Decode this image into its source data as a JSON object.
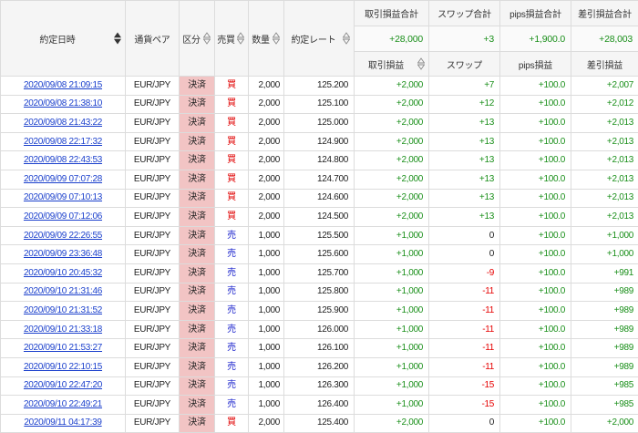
{
  "table": {
    "headers": {
      "date": "約定日時",
      "pair": "通貨ペア",
      "kubun": "区分",
      "side": "売買",
      "qty": "数量",
      "rate": "約定レート",
      "pl_total_label": "取引損益合計",
      "swap_total_label": "スワップ合計",
      "pips_total_label": "pips損益合計",
      "net_total_label": "差引損益合計",
      "pl": "取引損益",
      "swap": "スワップ",
      "pips": "pips損益",
      "net": "差引損益"
    },
    "sortable": {
      "date": "active",
      "kubun": "inactive",
      "side": "inactive",
      "qty": "inactive",
      "rate": "inactive",
      "pl": "inactive"
    },
    "totals": {
      "pl": "+28,000",
      "swap": "+3",
      "pips": "+1,900.0",
      "net": "+28,003"
    },
    "rows": [
      {
        "date": "2020/09/08 21:09:15",
        "pair": "EUR/JPY",
        "kubun": "決済",
        "side": "買",
        "qty": "2,000",
        "rate": "125.200",
        "pl": "+2,000",
        "swap": "+7",
        "pips": "+100.0",
        "net": "+2,007"
      },
      {
        "date": "2020/09/08 21:38:10",
        "pair": "EUR/JPY",
        "kubun": "決済",
        "side": "買",
        "qty": "2,000",
        "rate": "125.100",
        "pl": "+2,000",
        "swap": "+12",
        "pips": "+100.0",
        "net": "+2,012"
      },
      {
        "date": "2020/09/08 21:43:22",
        "pair": "EUR/JPY",
        "kubun": "決済",
        "side": "買",
        "qty": "2,000",
        "rate": "125.000",
        "pl": "+2,000",
        "swap": "+13",
        "pips": "+100.0",
        "net": "+2,013"
      },
      {
        "date": "2020/09/08 22:17:32",
        "pair": "EUR/JPY",
        "kubun": "決済",
        "side": "買",
        "qty": "2,000",
        "rate": "124.900",
        "pl": "+2,000",
        "swap": "+13",
        "pips": "+100.0",
        "net": "+2,013"
      },
      {
        "date": "2020/09/08 22:43:53",
        "pair": "EUR/JPY",
        "kubun": "決済",
        "side": "買",
        "qty": "2,000",
        "rate": "124.800",
        "pl": "+2,000",
        "swap": "+13",
        "pips": "+100.0",
        "net": "+2,013"
      },
      {
        "date": "2020/09/09 07:07:28",
        "pair": "EUR/JPY",
        "kubun": "決済",
        "side": "買",
        "qty": "2,000",
        "rate": "124.700",
        "pl": "+2,000",
        "swap": "+13",
        "pips": "+100.0",
        "net": "+2,013"
      },
      {
        "date": "2020/09/09 07:10:13",
        "pair": "EUR/JPY",
        "kubun": "決済",
        "side": "買",
        "qty": "2,000",
        "rate": "124.600",
        "pl": "+2,000",
        "swap": "+13",
        "pips": "+100.0",
        "net": "+2,013"
      },
      {
        "date": "2020/09/09 07:12:06",
        "pair": "EUR/JPY",
        "kubun": "決済",
        "side": "買",
        "qty": "2,000",
        "rate": "124.500",
        "pl": "+2,000",
        "swap": "+13",
        "pips": "+100.0",
        "net": "+2,013"
      },
      {
        "date": "2020/09/09 22:26:55",
        "pair": "EUR/JPY",
        "kubun": "決済",
        "side": "売",
        "qty": "1,000",
        "rate": "125.500",
        "pl": "+1,000",
        "swap": "0",
        "pips": "+100.0",
        "net": "+1,000"
      },
      {
        "date": "2020/09/09 23:36:48",
        "pair": "EUR/JPY",
        "kubun": "決済",
        "side": "売",
        "qty": "1,000",
        "rate": "125.600",
        "pl": "+1,000",
        "swap": "0",
        "pips": "+100.0",
        "net": "+1,000"
      },
      {
        "date": "2020/09/10 20:45:32",
        "pair": "EUR/JPY",
        "kubun": "決済",
        "side": "売",
        "qty": "1,000",
        "rate": "125.700",
        "pl": "+1,000",
        "swap": "-9",
        "pips": "+100.0",
        "net": "+991"
      },
      {
        "date": "2020/09/10 21:31:46",
        "pair": "EUR/JPY",
        "kubun": "決済",
        "side": "売",
        "qty": "1,000",
        "rate": "125.800",
        "pl": "+1,000",
        "swap": "-11",
        "pips": "+100.0",
        "net": "+989"
      },
      {
        "date": "2020/09/10 21:31:52",
        "pair": "EUR/JPY",
        "kubun": "決済",
        "side": "売",
        "qty": "1,000",
        "rate": "125.900",
        "pl": "+1,000",
        "swap": "-11",
        "pips": "+100.0",
        "net": "+989"
      },
      {
        "date": "2020/09/10 21:33:18",
        "pair": "EUR/JPY",
        "kubun": "決済",
        "side": "売",
        "qty": "1,000",
        "rate": "126.000",
        "pl": "+1,000",
        "swap": "-11",
        "pips": "+100.0",
        "net": "+989"
      },
      {
        "date": "2020/09/10 21:53:27",
        "pair": "EUR/JPY",
        "kubun": "決済",
        "side": "売",
        "qty": "1,000",
        "rate": "126.100",
        "pl": "+1,000",
        "swap": "-11",
        "pips": "+100.0",
        "net": "+989"
      },
      {
        "date": "2020/09/10 22:10:15",
        "pair": "EUR/JPY",
        "kubun": "決済",
        "side": "売",
        "qty": "1,000",
        "rate": "126.200",
        "pl": "+1,000",
        "swap": "-11",
        "pips": "+100.0",
        "net": "+989"
      },
      {
        "date": "2020/09/10 22:47:20",
        "pair": "EUR/JPY",
        "kubun": "決済",
        "side": "売",
        "qty": "1,000",
        "rate": "126.300",
        "pl": "+1,000",
        "swap": "-15",
        "pips": "+100.0",
        "net": "+985"
      },
      {
        "date": "2020/09/10 22:49:21",
        "pair": "EUR/JPY",
        "kubun": "決済",
        "side": "売",
        "qty": "1,000",
        "rate": "126.400",
        "pl": "+1,000",
        "swap": "-15",
        "pips": "+100.0",
        "net": "+985"
      },
      {
        "date": "2020/09/11 04:17:39",
        "pair": "EUR/JPY",
        "kubun": "決済",
        "side": "買",
        "qty": "2,000",
        "rate": "125.400",
        "pl": "+2,000",
        "swap": "0",
        "pips": "+100.0",
        "net": "+2,000"
      }
    ]
  },
  "icons": {
    "sort": "sort-up-down-icon"
  },
  "colors": {
    "positive": "#1a8f1a",
    "negative": "#e60000",
    "neutral": "#222222",
    "link": "#1a3fcc",
    "kubun_bg": "#f2c4c4",
    "header_bg": "#f5f5f5",
    "grid": "#dcdcdc",
    "side": {
      "買": "#e00000",
      "売": "#1a22cc"
    }
  }
}
